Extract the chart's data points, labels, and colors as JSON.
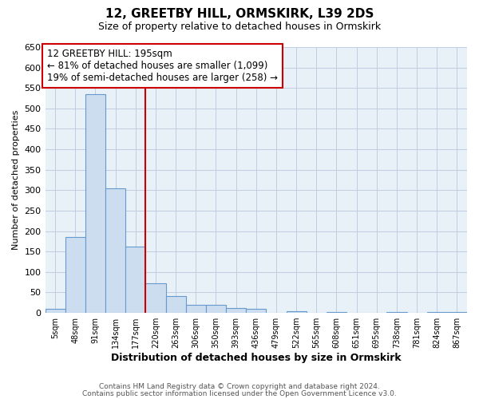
{
  "title": "12, GREETBY HILL, ORMSKIRK, L39 2DS",
  "subtitle": "Size of property relative to detached houses in Ormskirk",
  "xlabel": "Distribution of detached houses by size in Ormskirk",
  "ylabel": "Number of detached properties",
  "bar_labels": [
    "5sqm",
    "48sqm",
    "91sqm",
    "134sqm",
    "177sqm",
    "220sqm",
    "263sqm",
    "306sqm",
    "350sqm",
    "393sqm",
    "436sqm",
    "479sqm",
    "522sqm",
    "565sqm",
    "608sqm",
    "651sqm",
    "695sqm",
    "738sqm",
    "781sqm",
    "824sqm",
    "867sqm"
  ],
  "bar_values": [
    10,
    185,
    535,
    305,
    163,
    73,
    42,
    19,
    20,
    12,
    10,
    0,
    5,
    0,
    2,
    0,
    0,
    2,
    0,
    2,
    2
  ],
  "bar_color": "#ccddf0",
  "bar_edge_color": "#6699cc",
  "ylim": [
    0,
    650
  ],
  "yticks": [
    0,
    50,
    100,
    150,
    200,
    250,
    300,
    350,
    400,
    450,
    500,
    550,
    600,
    650
  ],
  "marker_color": "#cc0000",
  "annotation_title": "12 GREETBY HILL: 195sqm",
  "annotation_line1": "← 81% of detached houses are smaller (1,099)",
  "annotation_line2": "19% of semi-detached houses are larger (258) →",
  "footer_line1": "Contains HM Land Registry data © Crown copyright and database right 2024.",
  "footer_line2": "Contains public sector information licensed under the Open Government Licence v3.0.",
  "plot_bg_color": "#e8f0f8",
  "fig_bg_color": "#ffffff",
  "grid_color": "#c0cce0"
}
